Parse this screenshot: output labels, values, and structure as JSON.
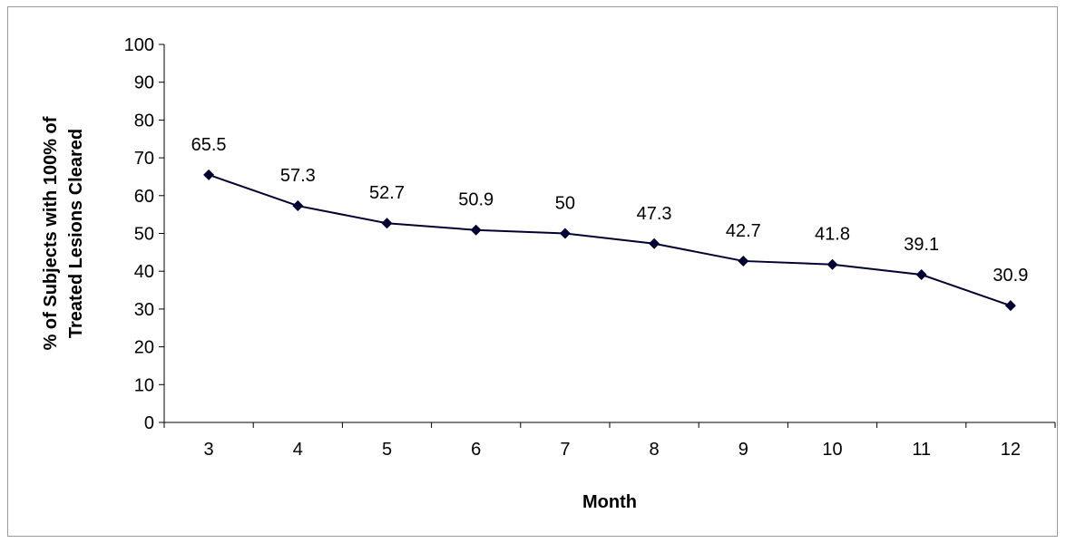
{
  "chart_data": {
    "type": "line",
    "title": "",
    "xlabel": "Month",
    "ylabel_lines": [
      "% of Subjects with 100% of",
      "Treated Lesions Cleared"
    ],
    "categories": [
      "3",
      "4",
      "5",
      "6",
      "7",
      "8",
      "9",
      "10",
      "11",
      "12"
    ],
    "series": [
      {
        "values": [
          65.5,
          57.3,
          52.7,
          50.9,
          50,
          47.3,
          42.7,
          41.8,
          39.1,
          30.9
        ],
        "data_labels": [
          "65.5",
          "57.3",
          "52.7",
          "50.9",
          "50",
          "47.3",
          "42.7",
          "41.8",
          "39.1",
          "30.9"
        ],
        "color": "#000033",
        "marker": "diamond"
      }
    ],
    "ylim": [
      0,
      100
    ],
    "yticks": [
      "0",
      "10",
      "20",
      "30",
      "40",
      "50",
      "60",
      "70",
      "80",
      "90",
      "100"
    ],
    "grid": false,
    "legend": "none"
  }
}
